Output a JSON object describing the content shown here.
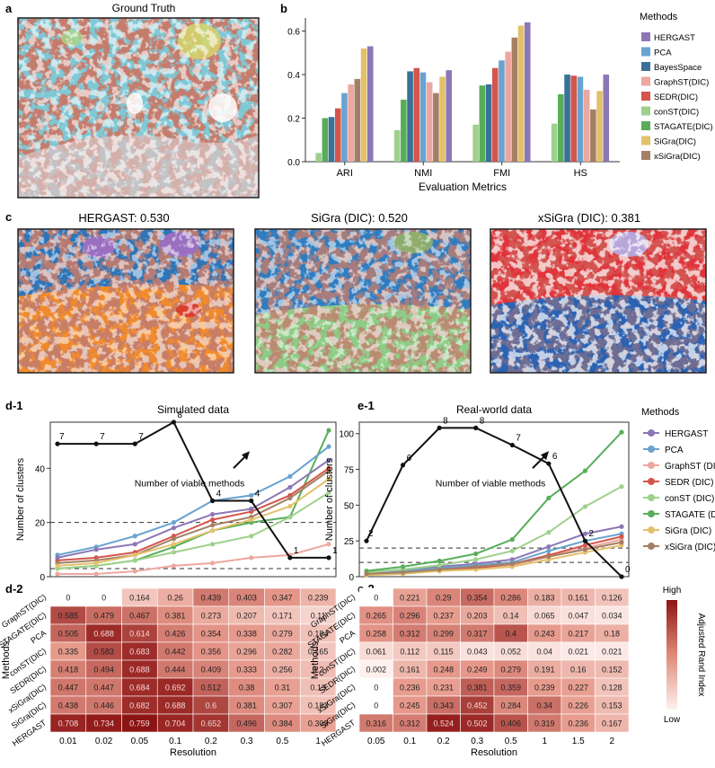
{
  "panel_labels": {
    "a": "a",
    "b": "b",
    "c": "c",
    "d1": "d-1",
    "e1": "e-1",
    "d2": "d-2",
    "e2": "e-2"
  },
  "panel_a": {
    "title": "Ground Truth"
  },
  "panel_c": {
    "titles": [
      "HERGAST: 0.530",
      "SiGra (DIC): 0.520",
      "xSiGra (DIC): 0.381"
    ]
  },
  "colors": {
    "HERGAST": "#8c77b6",
    "PCA": "#6aa3cf",
    "BayesSpace": "#3a7197",
    "GraphST (DIC)": "#eca7a0",
    "SEDR (DIC)": "#d4554b",
    "conST (DIC)": "#9fd18d",
    "STAGATE (DIC)": "#58ad5a",
    "SiGra (DIC)": "#e2c16b",
    "xSiGra (DIC)": "#a47f65",
    "line_black": "#111111",
    "heat_low": "#fdf1ee",
    "heat_high": "#8d1414"
  },
  "chart_data": [
    {
      "id": "b",
      "type": "bar",
      "title": "",
      "xlabel": "Evaluation Metrics",
      "ylabel": "",
      "ylim": [
        0,
        0.66
      ],
      "yticks": [
        "0.0",
        "0.2",
        "0.4",
        "0.6"
      ],
      "categories": [
        "ARI",
        "NMI",
        "FMI",
        "HS"
      ],
      "legend_title": "Methods",
      "series": [
        {
          "name": "conST(DIC)",
          "legend": "conST(DIC)",
          "color_key": "conST (DIC)",
          "values": [
            0.04,
            0.145,
            0.17,
            0.175
          ]
        },
        {
          "name": "STAGATE(DIC)",
          "legend": "STAGATE(DIC)",
          "color_key": "STAGATE (DIC)",
          "values": [
            0.2,
            0.285,
            0.35,
            0.31
          ]
        },
        {
          "name": "BayesSpace",
          "legend": "BayesSpace",
          "color_key": "BayesSpace",
          "values": [
            0.205,
            0.415,
            0.355,
            0.4
          ]
        },
        {
          "name": "SEDR(DIC)",
          "legend": "SEDR(DIC)",
          "color_key": "SEDR (DIC)",
          "values": [
            0.245,
            0.43,
            0.43,
            0.395
          ]
        },
        {
          "name": "PCA",
          "legend": "PCA",
          "color_key": "PCA",
          "values": [
            0.315,
            0.41,
            0.465,
            0.39
          ]
        },
        {
          "name": "GraphST(DIC)",
          "legend": "GraphST(DIC)",
          "color_key": "GraphST (DIC)",
          "values": [
            0.355,
            0.365,
            0.505,
            0.33
          ]
        },
        {
          "name": "xSiGra(DIC)",
          "legend": "xSiGra(DIC)",
          "color_key": "xSiGra (DIC)",
          "values": [
            0.38,
            0.315,
            0.57,
            0.24
          ]
        },
        {
          "name": "SiGra(DIC)",
          "legend": "SiGra(DIC)",
          "color_key": "SiGra (DIC)",
          "values": [
            0.52,
            0.39,
            0.625,
            0.325
          ]
        },
        {
          "name": "HERGAST",
          "legend": "HERGAST",
          "color_key": "HERGAST",
          "values": [
            0.53,
            0.42,
            0.64,
            0.4
          ]
        }
      ],
      "legend_order": [
        "HERGAST",
        "PCA",
        "BayesSpace",
        "GraphST(DIC)",
        "SEDR(DIC)",
        "conST(DIC)",
        "STAGATE(DIC)",
        "SiGra(DIC)",
        "xSiGra(DIC)"
      ]
    },
    {
      "id": "d1",
      "type": "line",
      "title": "Simulated data",
      "xlabel": "",
      "ylabel": "Number of clusters",
      "ylim": [
        0,
        57
      ],
      "yticks": [
        0,
        20,
        40
      ],
      "x": [
        "0.01",
        "0.02",
        "0.05",
        "0.1",
        "0.2",
        "0.3",
        "0.5",
        "1"
      ],
      "hlines": [
        20,
        3
      ],
      "annotation": "Number of viable methods",
      "series": [
        {
          "name": "GraphST (DIC)",
          "values": [
            1,
            1,
            2,
            4,
            5,
            7,
            8,
            12
          ]
        },
        {
          "name": "STAGATE (DIC)",
          "values": [
            3,
            4,
            6,
            11,
            17,
            20,
            22,
            54
          ]
        },
        {
          "name": "PCA",
          "values": [
            8,
            11,
            15,
            20,
            28,
            30,
            37,
            48
          ]
        },
        {
          "name": "conST (DIC)",
          "values": [
            3,
            4,
            6,
            9,
            12,
            15,
            22,
            31
          ]
        },
        {
          "name": "SEDR (DIC)",
          "values": [
            6,
            7,
            9,
            15,
            21,
            24,
            30,
            40
          ]
        },
        {
          "name": "xSiGra (DIC)",
          "values": [
            5,
            6,
            8,
            14,
            19,
            22,
            29,
            39
          ]
        },
        {
          "name": "SiGra (DIC)",
          "values": [
            4,
            5,
            8,
            12,
            17,
            21,
            26,
            36
          ]
        },
        {
          "name": "HERGAST",
          "values": [
            7,
            10,
            12,
            18,
            23,
            25,
            33,
            43
          ]
        }
      ],
      "viable": {
        "values": [
          49,
          49,
          49,
          57,
          28,
          28,
          7,
          7
        ],
        "labels": [
          "7",
          "7",
          "7",
          "8",
          "4",
          "4",
          "1",
          "1"
        ]
      }
    },
    {
      "id": "e1",
      "type": "line",
      "title": "Real-world data",
      "xlabel": "",
      "ylabel": "Number of clusters",
      "ylim": [
        0,
        108
      ],
      "yticks": [
        0,
        25,
        50,
        75,
        100
      ],
      "x": [
        "0.05",
        "0.1",
        "0.2",
        "0.3",
        "0.5",
        "1",
        "1.5",
        "2"
      ],
      "hlines": [
        20,
        10
      ],
      "annotation": "Number of viable methods",
      "legend_title": "Methods",
      "series": [
        {
          "name": "HERGAST",
          "values": [
            3,
            5,
            7,
            9,
            12,
            21,
            30,
            35
          ]
        },
        {
          "name": "PCA",
          "values": [
            3,
            4,
            6,
            8,
            10,
            18,
            25,
            30
          ]
        },
        {
          "name": "GraphST (DIC)",
          "values": [
            2,
            3,
            5,
            6,
            8,
            14,
            20,
            26
          ]
        },
        {
          "name": "SEDR (DIC)",
          "values": [
            2,
            3,
            4,
            6,
            9,
            15,
            22,
            28
          ]
        },
        {
          "name": "conST (DIC)",
          "values": [
            3,
            5,
            8,
            12,
            18,
            31,
            49,
            63
          ]
        },
        {
          "name": "STAGATE (DIC)",
          "values": [
            4,
            7,
            11,
            16,
            26,
            55,
            74,
            101
          ]
        },
        {
          "name": "SiGra (DIC)",
          "values": [
            1,
            2,
            4,
            5,
            7,
            12,
            17,
            22
          ]
        },
        {
          "name": "xSiGra (DIC)",
          "values": [
            2,
            3,
            5,
            7,
            9,
            14,
            19,
            24
          ]
        }
      ],
      "legend_order": [
        "HERGAST",
        "PCA",
        "GraphST (DIC)",
        "SEDR (DIC)",
        "conST (DIC)",
        "STAGATE (DIC)",
        "SiGra (DIC)",
        "xSiGra (DIC)"
      ],
      "viable": {
        "values": [
          25,
          78,
          104,
          104,
          92,
          79,
          25,
          0
        ],
        "labels": [
          "2",
          "6",
          "8",
          "8",
          "7",
          "6",
          "2",
          "0"
        ]
      }
    },
    {
      "id": "d2",
      "type": "heatmap",
      "xlabel": "Resolution",
      "ylabel": "Methods",
      "x": [
        "0.01",
        "0.02",
        "0.05",
        "0.1",
        "0.2",
        "0.3",
        "0.5",
        "1"
      ],
      "rows": [
        "GraphST(DIC)",
        "STAGATE(DIC)",
        "PCA",
        "conST(DIC)",
        "SEDR(DIC)",
        "xSiGra(DIC)",
        "SiGra(DIC)",
        "HERGAST"
      ],
      "values": [
        [
          null,
          null,
          0.164,
          0.26,
          0.439,
          0.403,
          0.347,
          0.239
        ],
        [
          0.585,
          0.479,
          0.467,
          0.381,
          0.273,
          0.207,
          0.171,
          0.11
        ],
        [
          0.505,
          0.688,
          0.614,
          0.426,
          0.354,
          0.338,
          0.279,
          0.184
        ],
        [
          0.335,
          0.583,
          0.683,
          0.442,
          0.356,
          0.296,
          0.282,
          0.165
        ],
        [
          0.418,
          0.494,
          0.688,
          0.444,
          0.409,
          0.333,
          0.256,
          0.2
        ],
        [
          0.447,
          0.447,
          0.684,
          0.692,
          0.512,
          0.38,
          0.31,
          0.19
        ],
        [
          0.438,
          0.446,
          0.682,
          0.688,
          0.6,
          0.381,
          0.307,
          0.183
        ],
        [
          0.708,
          0.734,
          0.759,
          0.704,
          0.652,
          0.496,
          0.384,
          0.309
        ]
      ],
      "labels": [
        [
          "0",
          "0",
          "0.164",
          "0.26",
          "0.439",
          "0.403",
          "0.347",
          "0.239"
        ],
        [
          "0.585",
          "0.479",
          "0.467",
          "0.381",
          "0.273",
          "0.207",
          "0.171",
          "0.11"
        ],
        [
          "0.505",
          "0.688",
          "0.614",
          "0.426",
          "0.354",
          "0.338",
          "0.279",
          "0.184"
        ],
        [
          "0.335",
          "0.583",
          "0.683",
          "0.442",
          "0.356",
          "0.296",
          "0.282",
          "0.165"
        ],
        [
          "0.418",
          "0.494",
          "0.688",
          "0.444",
          "0.409",
          "0.333",
          "0.256",
          "0.2"
        ],
        [
          "0.447",
          "0.447",
          "0.684",
          "0.692",
          "0.512",
          "0.38",
          "0.31",
          "0.19"
        ],
        [
          "0.438",
          "0.446",
          "0.682",
          "0.688",
          "0.6",
          "0.381",
          "0.307",
          "0.183"
        ],
        [
          "0.708",
          "0.734",
          "0.759",
          "0.704",
          "0.652",
          "0.496",
          "0.384",
          "0.309"
        ]
      ],
      "vmin": 0,
      "vmax": 0.76
    },
    {
      "id": "e2",
      "type": "heatmap",
      "xlabel": "Resolution",
      "ylabel": "Methods",
      "x": [
        "0.05",
        "0.1",
        "0.2",
        "0.3",
        "0.5",
        "1",
        "1.5",
        "2"
      ],
      "rows": [
        "GraphST(DIC)",
        "STAGATE(DIC)",
        "PCA",
        "conST(DIC)",
        "SEDR(DIC)",
        "xSiGra(DIC)",
        "SiGra(DIC)",
        "HERGAST"
      ],
      "values": [
        [
          null,
          0.221,
          0.29,
          0.354,
          0.286,
          0.183,
          0.161,
          0.126
        ],
        [
          0.265,
          0.296,
          0.237,
          0.203,
          0.14,
          0.065,
          0.047,
          0.034
        ],
        [
          0.258,
          0.312,
          0.299,
          0.317,
          0.4,
          0.243,
          0.217,
          0.18
        ],
        [
          0.061,
          0.112,
          0.115,
          0.043,
          0.052,
          0.04,
          0.021,
          0.021
        ],
        [
          0.002,
          0.161,
          0.248,
          0.249,
          0.279,
          0.191,
          0.16,
          0.152
        ],
        [
          null,
          0.236,
          0.231,
          0.381,
          0.359,
          0.239,
          0.227,
          0.128
        ],
        [
          null,
          0.245,
          0.343,
          0.452,
          0.284,
          0.34,
          0.226,
          0.153
        ],
        [
          0.316,
          0.312,
          0.524,
          0.502,
          0.406,
          0.319,
          0.236,
          0.167
        ]
      ],
      "labels": [
        [
          "0",
          "0.221",
          "0.29",
          "0.354",
          "0.286",
          "0.183",
          "0.161",
          "0.126"
        ],
        [
          "0.265",
          "0.296",
          "0.237",
          "0.203",
          "0.14",
          "0.065",
          "0.047",
          "0.034"
        ],
        [
          "0.258",
          "0.312",
          "0.299",
          "0.317",
          "0.4",
          "0.243",
          "0.217",
          "0.18"
        ],
        [
          "0.061",
          "0.112",
          "0.115",
          "0.043",
          "0.052",
          "0.04",
          "0.021",
          "0.021"
        ],
        [
          "0.002",
          "0.161",
          "0.248",
          "0.249",
          "0.279",
          "0.191",
          "0.16",
          "0.152"
        ],
        [
          "0",
          "0.236",
          "0.231",
          "0.381",
          "0.359",
          "0.239",
          "0.227",
          "0.128"
        ],
        [
          "0",
          "0.245",
          "0.343",
          "0.452",
          "0.284",
          "0.34",
          "0.226",
          "0.153"
        ],
        [
          "0.316",
          "0.312",
          "0.524",
          "0.502",
          "0.406",
          "0.319",
          "0.236",
          "0.167"
        ]
      ],
      "vmin": 0,
      "vmax": 0.55,
      "colorbar": {
        "title": "Adjusted Rand Index",
        "high": "High",
        "low": "Low"
      }
    }
  ]
}
